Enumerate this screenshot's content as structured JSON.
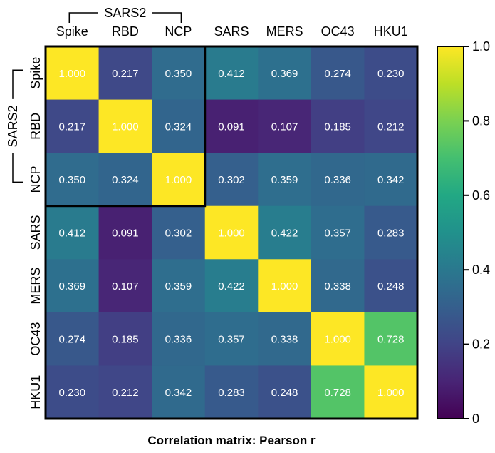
{
  "chart_data": {
    "type": "heatmap",
    "title": "Correlation matrix: Pearson r",
    "group_label": "SARS2",
    "group_members": [
      "Spike",
      "RBD",
      "NCP"
    ],
    "x_labels": [
      "Spike",
      "RBD",
      "NCP",
      "SARS",
      "MERS",
      "OC43",
      "HKU1"
    ],
    "y_labels": [
      "Spike",
      "RBD",
      "NCP",
      "SARS",
      "MERS",
      "OC43",
      "HKU1"
    ],
    "values": [
      [
        1.0,
        0.217,
        0.35,
        0.412,
        0.369,
        0.274,
        0.23
      ],
      [
        0.217,
        1.0,
        0.324,
        0.091,
        0.107,
        0.185,
        0.212
      ],
      [
        0.35,
        0.324,
        1.0,
        0.302,
        0.359,
        0.336,
        0.342
      ],
      [
        0.412,
        0.091,
        0.302,
        1.0,
        0.422,
        0.357,
        0.283
      ],
      [
        0.369,
        0.107,
        0.359,
        0.422,
        1.0,
        0.338,
        0.248
      ],
      [
        0.274,
        0.185,
        0.336,
        0.357,
        0.338,
        1.0,
        0.728
      ],
      [
        0.23,
        0.212,
        0.342,
        0.283,
        0.248,
        0.728,
        1.0
      ]
    ],
    "value_format_decimals": 3,
    "colorbar": {
      "colormap": "viridis",
      "range": [
        0,
        1.0
      ],
      "ticks": [
        0,
        0.2,
        0.4,
        0.6,
        0.8,
        1.0
      ],
      "tick_labels": [
        "0",
        "0.2",
        "0.4",
        "0.6",
        "0.8",
        "1.0"
      ]
    }
  }
}
